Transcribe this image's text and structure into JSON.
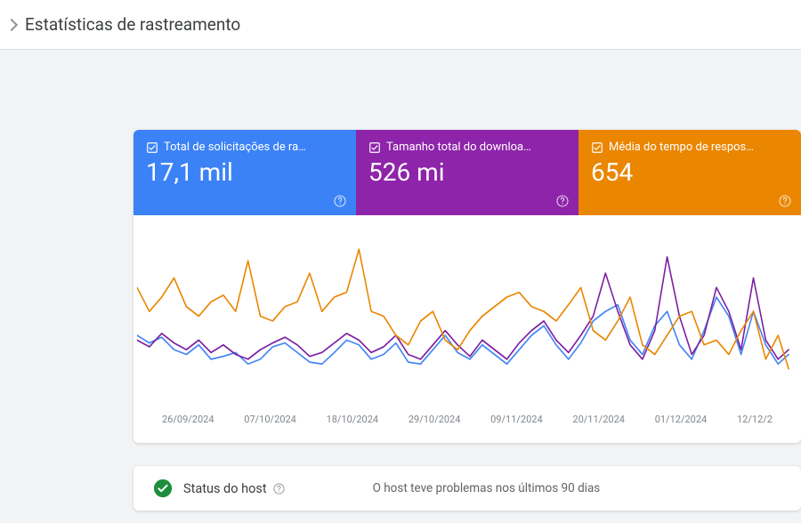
{
  "page": {
    "title": "Estatísticas de rastreamento",
    "background_color": "#f1f3f4"
  },
  "cards": [
    {
      "label": "Total de solicitações de ra…",
      "value": "17,1 mil",
      "bg": "#3b82f6"
    },
    {
      "label": "Tamanho total do downloa…",
      "value": "526 mi",
      "bg": "#8e24aa"
    },
    {
      "label": "Média do tempo de respos…",
      "value": "654",
      "bg": "#ea8600"
    }
  ],
  "chart": {
    "type": "line",
    "x_labels": [
      "26/09/2024",
      "07/10/2024",
      "18/10/2024",
      "29/10/2024",
      "09/11/2024",
      "20/11/2024",
      "01/12/2024",
      "12/12/2"
    ],
    "x_label_fontsize": 11,
    "x_label_color": "#80868b",
    "background_color": "#ffffff",
    "line_width": 1.6,
    "yrange": [
      0,
      100
    ],
    "xrange": [
      0,
      740
    ],
    "series": [
      {
        "name": "requests",
        "color": "#4285f4",
        "points": [
          [
            0,
            120
          ],
          [
            14,
            128
          ],
          [
            28,
            122
          ],
          [
            42,
            135
          ],
          [
            56,
            140
          ],
          [
            70,
            130
          ],
          [
            84,
            145
          ],
          [
            98,
            142
          ],
          [
            112,
            138
          ],
          [
            126,
            150
          ],
          [
            140,
            145
          ],
          [
            154,
            132
          ],
          [
            168,
            128
          ],
          [
            182,
            138
          ],
          [
            196,
            148
          ],
          [
            210,
            150
          ],
          [
            224,
            138
          ],
          [
            238,
            125
          ],
          [
            252,
            130
          ],
          [
            266,
            145
          ],
          [
            280,
            140
          ],
          [
            294,
            128
          ],
          [
            308,
            148
          ],
          [
            322,
            150
          ],
          [
            336,
            135
          ],
          [
            350,
            120
          ],
          [
            364,
            138
          ],
          [
            378,
            145
          ],
          [
            392,
            130
          ],
          [
            406,
            140
          ],
          [
            420,
            150
          ],
          [
            434,
            135
          ],
          [
            448,
            120
          ],
          [
            462,
            110
          ],
          [
            476,
            130
          ],
          [
            490,
            145
          ],
          [
            504,
            128
          ],
          [
            518,
            105
          ],
          [
            532,
            95
          ],
          [
            546,
            88
          ],
          [
            560,
            125
          ],
          [
            574,
            140
          ],
          [
            588,
            110
          ],
          [
            602,
            95
          ],
          [
            616,
            130
          ],
          [
            630,
            145
          ],
          [
            644,
            115
          ],
          [
            658,
            80
          ],
          [
            672,
            100
          ],
          [
            686,
            140
          ],
          [
            700,
            95
          ],
          [
            714,
            130
          ],
          [
            728,
            150
          ],
          [
            740,
            140
          ]
        ]
      },
      {
        "name": "download",
        "color": "#7b1fa2",
        "points": [
          [
            0,
            125
          ],
          [
            14,
            132
          ],
          [
            28,
            118
          ],
          [
            42,
            128
          ],
          [
            56,
            135
          ],
          [
            70,
            125
          ],
          [
            84,
            138
          ],
          [
            98,
            130
          ],
          [
            112,
            140
          ],
          [
            126,
            145
          ],
          [
            140,
            135
          ],
          [
            154,
            128
          ],
          [
            168,
            122
          ],
          [
            182,
            130
          ],
          [
            196,
            142
          ],
          [
            210,
            138
          ],
          [
            224,
            128
          ],
          [
            238,
            118
          ],
          [
            252,
            125
          ],
          [
            266,
            138
          ],
          [
            280,
            132
          ],
          [
            294,
            120
          ],
          [
            308,
            140
          ],
          [
            322,
            145
          ],
          [
            336,
            130
          ],
          [
            350,
            115
          ],
          [
            364,
            130
          ],
          [
            378,
            142
          ],
          [
            392,
            125
          ],
          [
            406,
            135
          ],
          [
            420,
            145
          ],
          [
            434,
            128
          ],
          [
            448,
            115
          ],
          [
            462,
            105
          ],
          [
            476,
            125
          ],
          [
            490,
            138
          ],
          [
            504,
            120
          ],
          [
            518,
            100
          ],
          [
            532,
            55
          ],
          [
            546,
            95
          ],
          [
            560,
            130
          ],
          [
            574,
            145
          ],
          [
            588,
            115
          ],
          [
            602,
            38
          ],
          [
            616,
            100
          ],
          [
            630,
            140
          ],
          [
            644,
            120
          ],
          [
            658,
            70
          ],
          [
            672,
            95
          ],
          [
            686,
            135
          ],
          [
            700,
            60
          ],
          [
            714,
            125
          ],
          [
            728,
            145
          ],
          [
            740,
            135
          ]
        ]
      },
      {
        "name": "response_time",
        "color": "#ea8600",
        "points": [
          [
            0,
            70
          ],
          [
            14,
            95
          ],
          [
            28,
            80
          ],
          [
            42,
            60
          ],
          [
            56,
            90
          ],
          [
            70,
            100
          ],
          [
            84,
            85
          ],
          [
            98,
            78
          ],
          [
            112,
            95
          ],
          [
            126,
            42
          ],
          [
            140,
            100
          ],
          [
            154,
            105
          ],
          [
            168,
            90
          ],
          [
            182,
            85
          ],
          [
            196,
            55
          ],
          [
            210,
            95
          ],
          [
            224,
            80
          ],
          [
            238,
            75
          ],
          [
            252,
            30
          ],
          [
            266,
            95
          ],
          [
            280,
            100
          ],
          [
            294,
            120
          ],
          [
            308,
            130
          ],
          [
            322,
            105
          ],
          [
            336,
            95
          ],
          [
            350,
            125
          ],
          [
            364,
            135
          ],
          [
            378,
            115
          ],
          [
            392,
            100
          ],
          [
            406,
            90
          ],
          [
            420,
            80
          ],
          [
            434,
            75
          ],
          [
            448,
            90
          ],
          [
            462,
            95
          ],
          [
            476,
            105
          ],
          [
            490,
            88
          ],
          [
            504,
            70
          ],
          [
            518,
            115
          ],
          [
            532,
            125
          ],
          [
            546,
            105
          ],
          [
            560,
            80
          ],
          [
            574,
            130
          ],
          [
            588,
            140
          ],
          [
            602,
            120
          ],
          [
            616,
            100
          ],
          [
            630,
            95
          ],
          [
            644,
            130
          ],
          [
            658,
            125
          ],
          [
            672,
            140
          ],
          [
            686,
            115
          ],
          [
            700,
            95
          ],
          [
            714,
            145
          ],
          [
            728,
            120
          ],
          [
            740,
            155
          ]
        ]
      }
    ]
  },
  "host": {
    "label": "Status do host",
    "status_color": "#1e8e3e",
    "message": "O host teve problemas nos últimos 90 dias"
  }
}
